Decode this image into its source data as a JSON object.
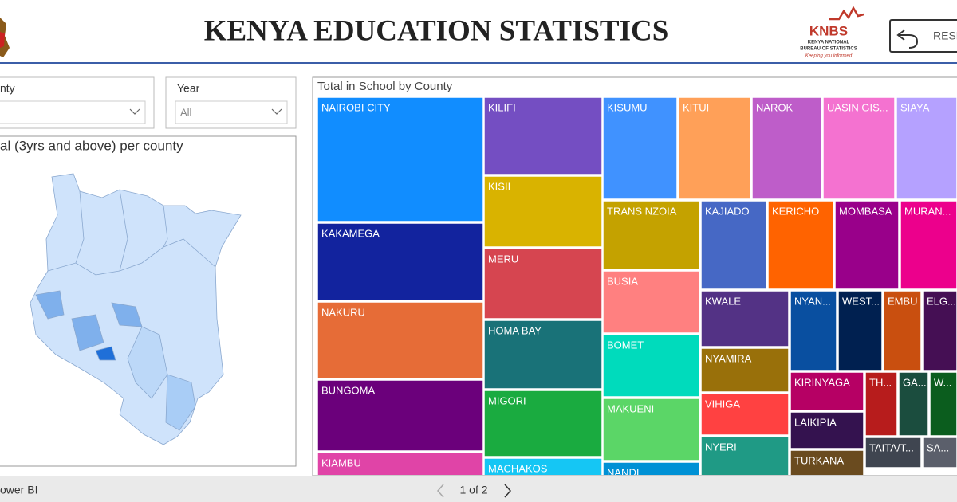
{
  "header": {
    "title": "KENYA EDUCATION STATISTICS",
    "logo_name": "KNBS",
    "logo_line1": "KENYA NATIONAL",
    "logo_line2": "BUREAU OF STATISTICS",
    "logo_tagline": "Keeping you informed",
    "reset_button": "RESE"
  },
  "filters": [
    {
      "label": "nty",
      "value": null
    },
    {
      "label": "Year",
      "value": "All"
    }
  ],
  "map": {
    "title": "al (3yrs and above) per county"
  },
  "treemap": {
    "title": "Total in School by County",
    "tiles": [
      {
        "label": "NAIROBI CITY",
        "color": "#118dff"
      },
      {
        "label": "KAKAMEGA",
        "color": "#12239e"
      },
      {
        "label": "NAKURU",
        "color": "#e66c37"
      },
      {
        "label": "BUNGOMA",
        "color": "#6b007b"
      },
      {
        "label": "KIAMBU",
        "color": "#e044a7"
      },
      {
        "label": "KILIFI",
        "color": "#744ec2"
      },
      {
        "label": "KISII",
        "color": "#d9b300"
      },
      {
        "label": "MERU",
        "color": "#d64550"
      },
      {
        "label": "HOMA BAY",
        "color": "#197278"
      },
      {
        "label": "MIGORI",
        "color": "#1aab40"
      },
      {
        "label": "MACHAKOS",
        "color": "#15c6f4"
      },
      {
        "label": "KISUMU",
        "color": "#4092ff"
      },
      {
        "label": "KITUI",
        "color": "#ffa058"
      },
      {
        "label": "NAROK",
        "color": "#be5dc9"
      },
      {
        "label": "UASIN GIS...",
        "color": "#f472d0"
      },
      {
        "label": "SIAYA",
        "color": "#b5a1ff"
      },
      {
        "label": "TRANS NZOIA",
        "color": "#c4a200"
      },
      {
        "label": "BUSIA",
        "color": "#ff8080"
      },
      {
        "label": "BOMET",
        "color": "#00dbbc"
      },
      {
        "label": "MAKUENI",
        "color": "#5bd667"
      },
      {
        "label": "NANDI",
        "color": "#0091d5"
      },
      {
        "label": "KAJIADO",
        "color": "#4668c5"
      },
      {
        "label": "KERICHO",
        "color": "#ff6300"
      },
      {
        "label": "MOMBASA",
        "color": "#99008a"
      },
      {
        "label": "MURAN...",
        "color": "#ec008c"
      },
      {
        "label": "KWALE",
        "color": "#533285"
      },
      {
        "label": "NYAMIRA",
        "color": "#99700a"
      },
      {
        "label": "VIHIGA",
        "color": "#ff4141"
      },
      {
        "label": "NYERI",
        "color": "#1f9a85"
      },
      {
        "label": "NYAN...",
        "color": "#094fa0"
      },
      {
        "label": "WEST...",
        "color": "#002050"
      },
      {
        "label": "EMBU",
        "color": "#c94f0f"
      },
      {
        "label": "ELG...",
        "color": "#450f54"
      },
      {
        "label": "KIRINYAGA",
        "color": "#b60064"
      },
      {
        "label": "TH...",
        "color": "#b71c1c"
      },
      {
        "label": "GA...",
        "color": "#1b4d3e"
      },
      {
        "label": "W...",
        "color": "#0b5d1e"
      },
      {
        "label": "LAIKIPIA",
        "color": "#34124f"
      },
      {
        "label": "TURKANA",
        "color": "#6a4b1f"
      },
      {
        "label": "TAITA/T...",
        "color": "#3f4550"
      },
      {
        "label": "SA...",
        "color": "#5b5f6b"
      }
    ]
  },
  "footer": {
    "brand": "ower BI",
    "page": "1 of 2"
  }
}
